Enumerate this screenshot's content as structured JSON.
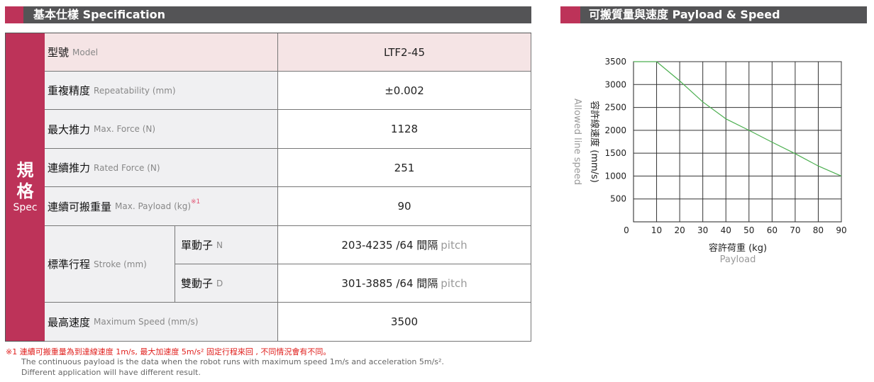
{
  "left_header": {
    "title": "基本仕樣 Specification"
  },
  "right_header": {
    "title": "可搬質量與速度  Payload & Speed"
  },
  "spec": {
    "side_chars": [
      "規",
      "格"
    ],
    "side_en": "Spec",
    "rows": [
      {
        "zh": "型號",
        "en": "Model",
        "value": "LTF2-45"
      },
      {
        "zh": "重複精度",
        "en": "Repeatability (mm)",
        "value": "±0.002"
      },
      {
        "zh": "最大推力",
        "en": "Max. Force (N)",
        "value": "1128"
      },
      {
        "zh": "連續推力",
        "en": "Rated Force (N)",
        "value": "251"
      },
      {
        "zh": "連續可搬重量",
        "en": "Max. Payload (kg)",
        "sup": "※1",
        "value": "90"
      },
      {
        "zh": "最高速度",
        "en": "Maximum Speed (mm/s)",
        "value": "3500"
      }
    ],
    "stroke": {
      "zh": "標準行程",
      "en": "Stroke (mm)",
      "sub": [
        {
          "zh": "單動子",
          "en": "N",
          "value": "203-4235 /64 間隔",
          "unit": "pitch"
        },
        {
          "zh": "雙動子",
          "en": "D",
          "value": "301-3885 /64 間隔",
          "unit": "pitch"
        }
      ]
    }
  },
  "notes": {
    "red": "※1 連續可搬重量為到達線速度 1m/s, 最大加速度 5m/s² 固定行程來回 , 不同情況會有不同。",
    "line1": "The continuous payload is the data when the robot runs with maximum speed 1m/s and acceleration 5m/s².",
    "line2": "Different application will have different result."
  },
  "chart_data": {
    "type": "line",
    "x": [
      0,
      10,
      20,
      30,
      40,
      50,
      60,
      70,
      80,
      90
    ],
    "series": [
      {
        "values": [
          3500,
          3500,
          3080,
          2620,
          2250,
          2000,
          1740,
          1490,
          1220,
          1000
        ],
        "color": "#4caf50"
      }
    ],
    "xticks": [
      0,
      10,
      20,
      30,
      40,
      50,
      60,
      70,
      80,
      90
    ],
    "yticks": [
      500,
      1000,
      1500,
      2000,
      2500,
      3000,
      3500
    ],
    "xlim": [
      0,
      90
    ],
    "ylim": [
      0,
      3500
    ],
    "grid": true,
    "xlabel": "容許荷重 (kg)",
    "xlabel_en": "Payload",
    "ylabel": "容許線速度 (mm/s)",
    "ylabel_en": "Allowed line speed"
  }
}
